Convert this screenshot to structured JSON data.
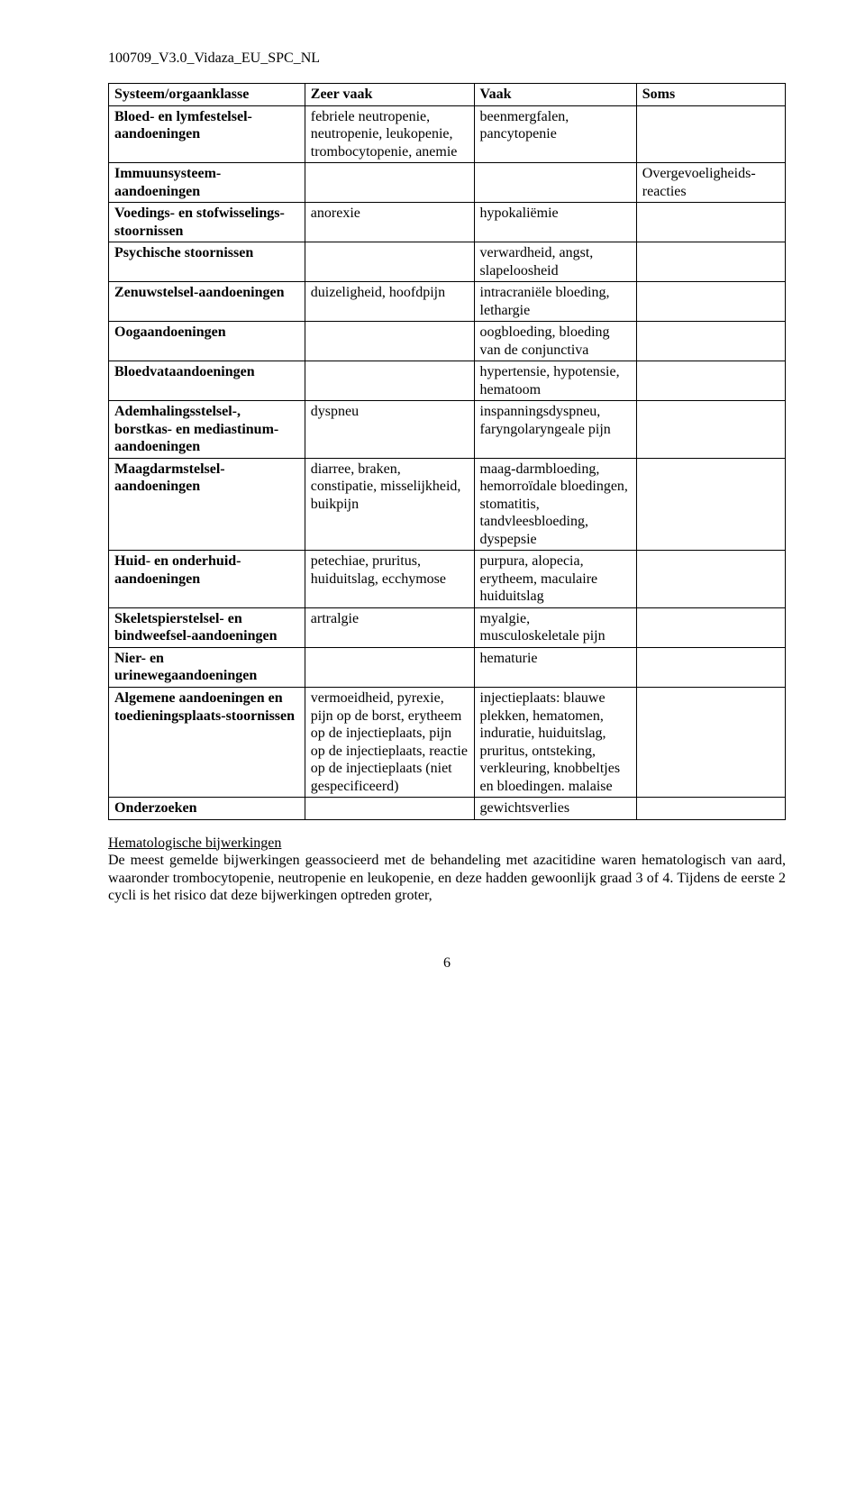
{
  "doc_header": "100709_V3.0_Vidaza_EU_SPC_NL",
  "table": {
    "headers": {
      "soc": "Systeem/orgaanklasse",
      "very_common": "Zeer vaak",
      "common": "Vaak",
      "uncommon": "Soms"
    },
    "rows": [
      {
        "soc": "Bloed- en lymfestelsel-aandoeningen",
        "very_common": "febriele neutropenie, neutropenie, leukopenie, trombocytopenie, anemie",
        "common": "beenmergfalen, pancytopenie",
        "uncommon": ""
      },
      {
        "soc": "Immuunsysteem-aandoeningen",
        "very_common": "",
        "common": "",
        "uncommon": "Overgevoeligheids-reacties"
      },
      {
        "soc": "Voedings- en stofwisselings-stoornissen",
        "very_common": "anorexie",
        "common": "hypokaliëmie",
        "uncommon": ""
      },
      {
        "soc": "Psychische stoornissen",
        "very_common": "",
        "common": "verwardheid, angst, slapeloosheid",
        "uncommon": ""
      },
      {
        "soc": "Zenuwstelsel-aandoeningen",
        "very_common": "duizeligheid, hoofdpijn",
        "common": "intracraniële bloeding, lethargie",
        "uncommon": ""
      },
      {
        "soc": "Oogaandoeningen",
        "very_common": "",
        "common": "oogbloeding, bloeding van de conjunctiva",
        "uncommon": ""
      },
      {
        "soc": "Bloedvataandoeningen",
        "very_common": "",
        "common": "hypertensie, hypotensie, hematoom",
        "uncommon": ""
      },
      {
        "soc": "Ademhalingsstelsel-, borstkas- en mediastinum-aandoeningen",
        "very_common": "dyspneu",
        "common": "inspanningsdyspneu, faryngolaryngeale pijn",
        "uncommon": ""
      },
      {
        "soc": "Maagdarmstelsel-aandoeningen",
        "very_common": "diarree, braken, constipatie, misselijkheid, buikpijn",
        "common": "maag-darmbloeding, hemorroïdale bloedingen, stomatitis, tandvleesbloeding, dyspepsie",
        "uncommon": ""
      },
      {
        "soc": "Huid- en onderhuid-aandoeningen",
        "very_common": "petechiae, pruritus, huiduitslag, ecchymose",
        "common": "purpura, alopecia, erytheem, maculaire huiduitslag",
        "uncommon": ""
      },
      {
        "soc": "Skeletspierstelsel- en bindweefsel-aandoeningen",
        "very_common": "artralgie",
        "common": "myalgie, musculoskeletale pijn",
        "uncommon": ""
      },
      {
        "soc": "Nier- en urinewegaandoeningen",
        "very_common": "",
        "common": "hematurie",
        "uncommon": ""
      },
      {
        "soc": "Algemene aandoeningen en toedieningsplaats-stoornissen",
        "very_common": "vermoeidheid, pyrexie, pijn op de borst, erytheem op de injectieplaats, pijn op de injectieplaats, reactie op de injectieplaats (niet gespecificeerd)",
        "common": "injectieplaats: blauwe plekken, hematomen, induratie, huiduitslag, pruritus, ontsteking, verkleuring, knobbeltjes en bloedingen. malaise",
        "uncommon": ""
      },
      {
        "soc": "Onderzoeken",
        "very_common": "",
        "common": "gewichtsverlies",
        "uncommon": ""
      }
    ]
  },
  "footer": {
    "heading": "Hematologische bijwerkingen",
    "body": "De meest gemelde bijwerkingen geassocieerd met de behandeling met azacitidine waren hematologisch van aard, waaronder trombocytopenie, neutropenie en leukopenie, en deze hadden gewoonlijk graad 3 of 4. Tijdens de eerste 2 cycli is het risico dat deze bijwerkingen optreden groter,"
  },
  "page_number": "6"
}
